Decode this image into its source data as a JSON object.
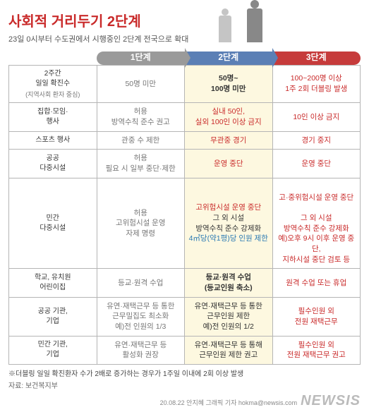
{
  "title": "사회적 거리두기 2단계",
  "subtitle": "23일 0시부터 수도권에서 시행중인 2단계 전국으로 확대",
  "columns": {
    "c1": "1단계",
    "c2": "2단계",
    "c3": "3단계"
  },
  "rows": [
    {
      "label": "2주간\n일일 확진수",
      "sublabel": "(지역사회 환자 중심)",
      "c1": "50명 미만",
      "c2": "50명~\n100명 미만",
      "c3": "100~200명 이상\n1주 2회 더블링 발생"
    },
    {
      "label": "집합·모임·\n행사",
      "c1": "허용\n방역수칙 준수 권고",
      "c2": "실내 50인,\n실외 100인 이상 금지",
      "c3": "10인 이상 금지"
    },
    {
      "label": "스포츠 행사",
      "c1": "관중 수 제한",
      "c2": "무관중 경기",
      "c3": "경기 중지"
    },
    {
      "label": "공공\n다중시설",
      "c1": "허용\n필요 시 일부 중단·제한",
      "c2": "운영 중단",
      "c3": "운영 중단"
    },
    {
      "label": "민간\n다중시설",
      "c1": "허용\n고위험시설 운영\n자제 명령",
      "c2_line1": "고위험시설 운영 중단",
      "c2_line2": "그 외 시설\n방역수칙 준수 강제화",
      "c2_line3": "4㎡당(약1평)당 인원 제한",
      "c3_line1": "고·중위험시설 운영 중단",
      "c3_line2": "그 외 시설\n방역수칙 준수 강제화\n예)오후 9시 이후 운영 중단,\n지하시설 중단 검토 등"
    },
    {
      "label": "학교, 유치원\n어린이집",
      "c1": "등교·원격 수업",
      "c2": "등교·원격 수업\n(등교인원 축소)",
      "c3": "원격 수업 또는 휴업"
    },
    {
      "label": "공공 기관,\n기업",
      "c1": "유연·재택근무 등 통한\n근무밀집도 최소화\n예)전 인원의 1/3",
      "c2": "유연·재택근무 등 통한\n근무인원 제한\n예)전 인원의 1/2",
      "c3": "필수인원 외\n전원 재택근무"
    },
    {
      "label": "민간 기관,\n기업",
      "c1": "유연·재택근무 등\n활성화 권장",
      "c2": "유연·재택근무 등 통해\n근무인원 제한 권고",
      "c3": "필수인원 외\n전원 재택근무 권고"
    }
  ],
  "footnote": "※더블링 일일 확진환자 수가 2배로 증가하는 경우가 1주일 이내에 2회 이상 발생",
  "source": "자료: 보건복지부",
  "credit": "20.08.22 안지혜 그래픽 기자 hokma@newsis.com",
  "logo": "NEWSIS"
}
